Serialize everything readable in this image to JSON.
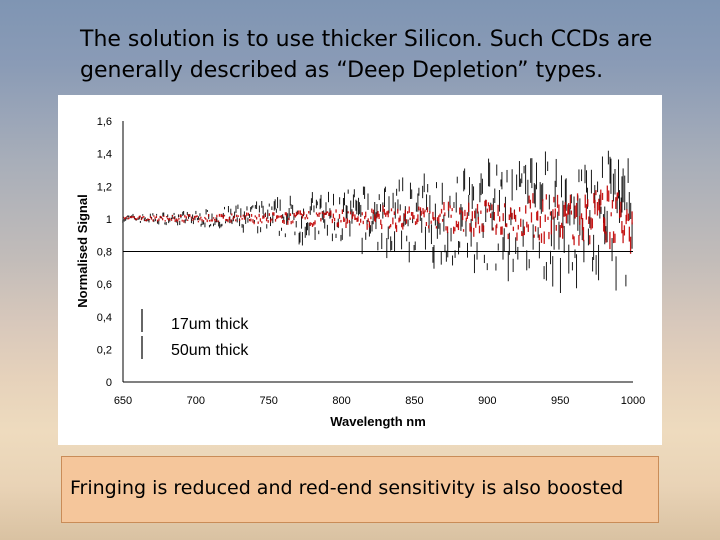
{
  "heading": {
    "line1": "The solution is to use thicker Silicon. Such CCDs are",
    "line2": "generally described as “Deep Depletion” types."
  },
  "callout": {
    "text": "Fringing is reduced and red-end sensitivity  is also boosted"
  },
  "chart_data": {
    "type": "line",
    "title": "",
    "xlabel": "Wavelength nm",
    "ylabel": "Normalised Signal",
    "xlim": [
      650,
      1000
    ],
    "ylim": [
      0,
      1.6
    ],
    "x_ticks": [
      "650",
      "700",
      "750",
      "800",
      "850",
      "900",
      "950",
      "1000"
    ],
    "y_ticks": [
      "0",
      "0,2",
      "0,4",
      "0,6",
      "0,8",
      "1",
      "1,2",
      "1,4",
      "1,6"
    ],
    "grid": false,
    "legend": {
      "placement": "bottom-left"
    },
    "series": [
      {
        "name": "17um thick",
        "color": "#000000",
        "x": [
          650,
          700,
          750,
          800,
          850,
          900,
          950,
          1000
        ],
        "y": [
          1.0,
          1.0,
          1.0,
          1.0,
          1.0,
          1.0,
          1.0,
          1.0
        ],
        "fringe_amplitude": [
          0.02,
          0.04,
          0.1,
          0.16,
          0.22,
          0.3,
          0.36,
          0.4
        ]
      },
      {
        "name": "50um thick",
        "color": "#c00000",
        "x": [
          650,
          700,
          750,
          800,
          850,
          900,
          950,
          1000
        ],
        "y": [
          1.0,
          1.0,
          1.0,
          1.0,
          1.0,
          1.0,
          1.0,
          1.0
        ],
        "fringe_amplitude": [
          0.01,
          0.02,
          0.03,
          0.05,
          0.07,
          0.1,
          0.14,
          0.18
        ]
      }
    ]
  }
}
